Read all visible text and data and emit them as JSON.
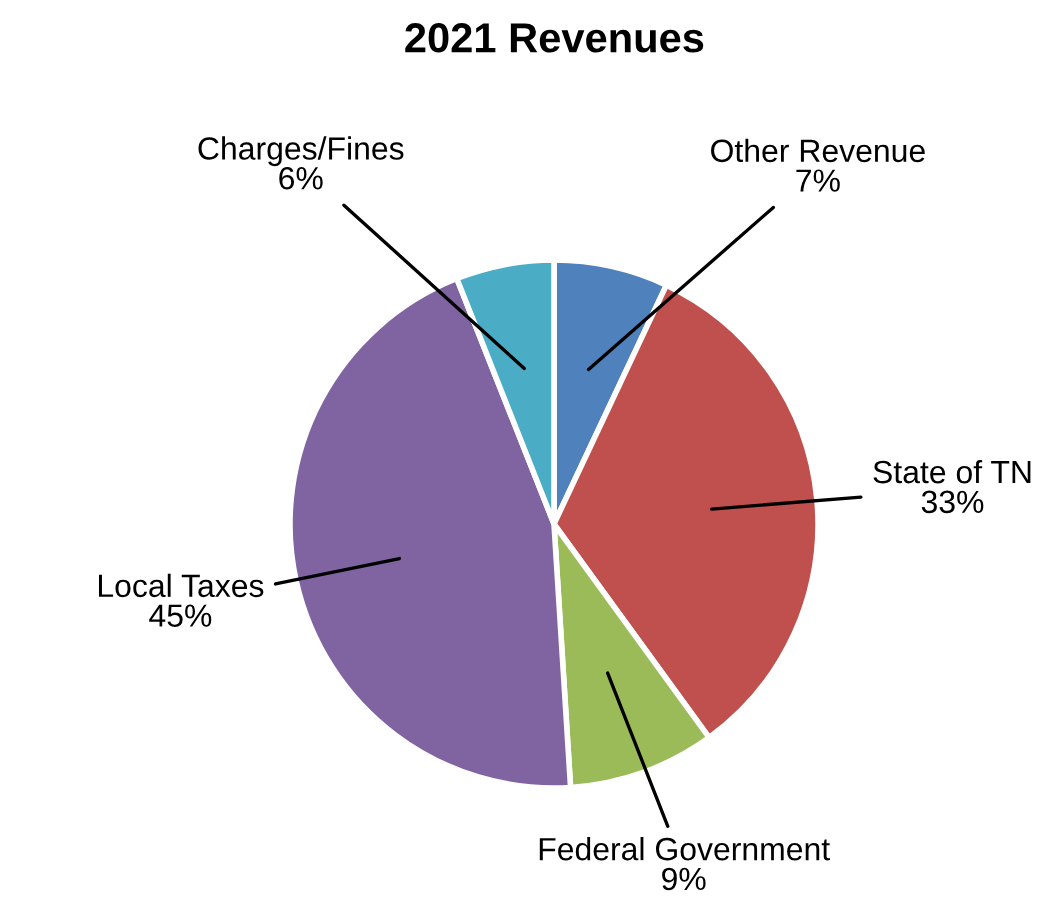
{
  "chart_data": {
    "type": "pie",
    "title": "2021 Revenues",
    "categories": [
      "Other Revenue",
      "State of TN",
      "Federal Government",
      "Local Taxes",
      "Charges/Fines"
    ],
    "values": [
      7,
      33,
      9,
      45,
      6
    ],
    "value_labels": [
      "7%",
      "33%",
      "9%",
      "45%",
      "6%"
    ],
    "colors": [
      "#4f81bd",
      "#c0504d",
      "#9bbb59",
      "#8064a2",
      "#4bacc6"
    ],
    "legend": false
  }
}
